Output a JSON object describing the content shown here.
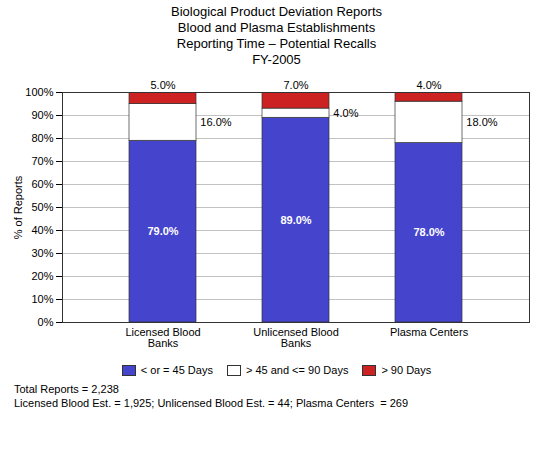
{
  "chart_data": {
    "type": "bar",
    "stacked": true,
    "title": "Biological Product Deviation Reports\nBlood and Plasma Establishments\nReporting Time – Potential Recalls\nFY-2005",
    "categories": [
      "Licensed Blood\nBanks",
      "Unlicensed Blood\nBanks",
      "Plasma Centers"
    ],
    "series": [
      {
        "name": "< or = 45 Days",
        "color": "#4444CC",
        "values": [
          79.0,
          89.0,
          78.0
        ],
        "value_labels": [
          "79.0%",
          "89.0%",
          "78.0%"
        ]
      },
      {
        "name": "> 45 and <= 90 Days",
        "color": "#FFFFFF",
        "values": [
          16.0,
          4.0,
          18.0
        ],
        "value_labels": [
          "16.0%",
          "4.0%",
          "18.0%"
        ]
      },
      {
        "name": "> 90 Days",
        "color": "#CC2222",
        "values": [
          5.0,
          7.0,
          4.0
        ],
        "value_labels": [
          "5.0%",
          "7.0%",
          "4.0%"
        ]
      }
    ],
    "ylabel": "% of Reports",
    "ylim": [
      0,
      100
    ],
    "yticks": [
      {
        "value": 0,
        "label": "0%"
      },
      {
        "value": 10,
        "label": "10%"
      },
      {
        "value": 20,
        "label": "20%"
      },
      {
        "value": 30,
        "label": "30%"
      },
      {
        "value": 40,
        "label": "40%"
      },
      {
        "value": 50,
        "label": "50%"
      },
      {
        "value": 60,
        "label": "60%"
      },
      {
        "value": 70,
        "label": "70%"
      },
      {
        "value": 80,
        "label": "80%"
      },
      {
        "value": 90,
        "label": "90%"
      },
      {
        "value": 100,
        "label": "100%"
      }
    ],
    "grid": true,
    "legend": "bottom",
    "data_labels": true,
    "annotations": [
      "Total Reports = 2,238",
      "Licensed Blood Est. = 1,925; Unlicensed Blood Est. = 44; Plasma Centers  = 269"
    ]
  }
}
